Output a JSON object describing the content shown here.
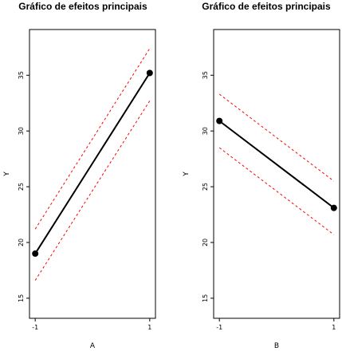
{
  "colors": {
    "main": "#000000",
    "ci": "#ff0000"
  },
  "chart_data": [
    {
      "type": "line",
      "title": "Gráfico de efeitos principais",
      "xlabel": "A",
      "ylabel": "Y",
      "x": [
        -1,
        1
      ],
      "x_tick_labels": [
        "-1",
        "1"
      ],
      "xlim": [
        -1.1,
        1.1
      ],
      "ylim": [
        13.2,
        39.1
      ],
      "y_ticks": [
        15,
        20,
        25,
        30,
        35
      ],
      "y_tick_labels": [
        "15",
        "20",
        "25",
        "30",
        "35"
      ],
      "series": [
        {
          "role": "mean",
          "values": [
            19.0,
            35.2
          ]
        },
        {
          "role": "upper",
          "values": [
            21.2,
            37.4
          ]
        },
        {
          "role": "lower",
          "values": [
            16.6,
            32.7
          ]
        }
      ],
      "grid": false
    },
    {
      "type": "line",
      "title": "Gráfico de efeitos principais",
      "xlabel": "B",
      "ylabel": "Y",
      "x": [
        -1,
        1
      ],
      "x_tick_labels": [
        "-1",
        "1"
      ],
      "xlim": [
        -1.1,
        1.1
      ],
      "ylim": [
        13.2,
        39.1
      ],
      "y_ticks": [
        15,
        20,
        25,
        30,
        35
      ],
      "y_tick_labels": [
        "15",
        "20",
        "25",
        "30",
        "35"
      ],
      "series": [
        {
          "role": "mean",
          "values": [
            30.9,
            23.1
          ]
        },
        {
          "role": "upper",
          "values": [
            33.3,
            25.5
          ]
        },
        {
          "role": "lower",
          "values": [
            28.5,
            20.7
          ]
        }
      ],
      "grid": false
    }
  ]
}
